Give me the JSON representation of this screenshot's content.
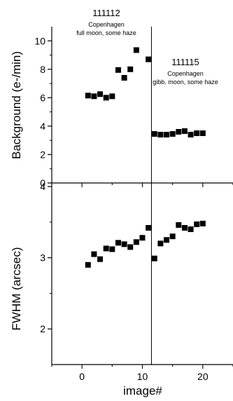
{
  "chart_data": [
    {
      "type": "scatter",
      "panel": "top",
      "ylabel": "Background  (e-/min)",
      "ylim": [
        0,
        11
      ],
      "yticks": [
        0,
        2,
        4,
        6,
        8,
        10
      ],
      "xlim": [
        -5,
        25
      ],
      "marker": "filled-square",
      "divider_x": 11.5,
      "annotations": [
        {
          "lines": [
            "111112",
            "Copenhagen",
            "full moon, some haze"
          ]
        },
        {
          "lines": [
            "111115",
            "Copenhagen",
            "gibb. moon, some haze"
          ]
        }
      ],
      "series": [
        {
          "x": [
            1,
            2,
            3,
            4,
            5,
            6,
            7,
            8,
            9,
            11,
            12,
            13,
            14,
            15,
            16,
            17,
            18,
            19,
            20
          ],
          "y": [
            6.15,
            6.1,
            6.25,
            6.0,
            6.1,
            7.95,
            7.4,
            8.0,
            9.35,
            8.7,
            3.45,
            3.4,
            3.4,
            3.45,
            3.6,
            3.65,
            3.4,
            3.5,
            3.5
          ]
        }
      ]
    },
    {
      "type": "scatter",
      "panel": "bottom",
      "ylabel": "FWHM  (arcsec)",
      "xlabel": "image#",
      "ylim": [
        1.5,
        4.05
      ],
      "yticks": [
        2,
        3,
        4
      ],
      "xlim": [
        -5,
        25
      ],
      "xticks": [
        0,
        10,
        20
      ],
      "marker": "filled-square",
      "divider_x": 11.5,
      "series": [
        {
          "x": [
            1,
            2,
            3,
            4,
            5,
            6,
            7,
            8,
            9,
            10,
            11,
            12,
            13,
            14,
            15,
            16,
            17,
            18,
            19,
            20
          ],
          "y": [
            2.9,
            3.05,
            2.98,
            3.13,
            3.12,
            3.21,
            3.19,
            3.15,
            3.22,
            3.28,
            3.42,
            2.99,
            3.2,
            3.25,
            3.3,
            3.46,
            3.42,
            3.4,
            3.47,
            3.48
          ]
        }
      ]
    }
  ]
}
